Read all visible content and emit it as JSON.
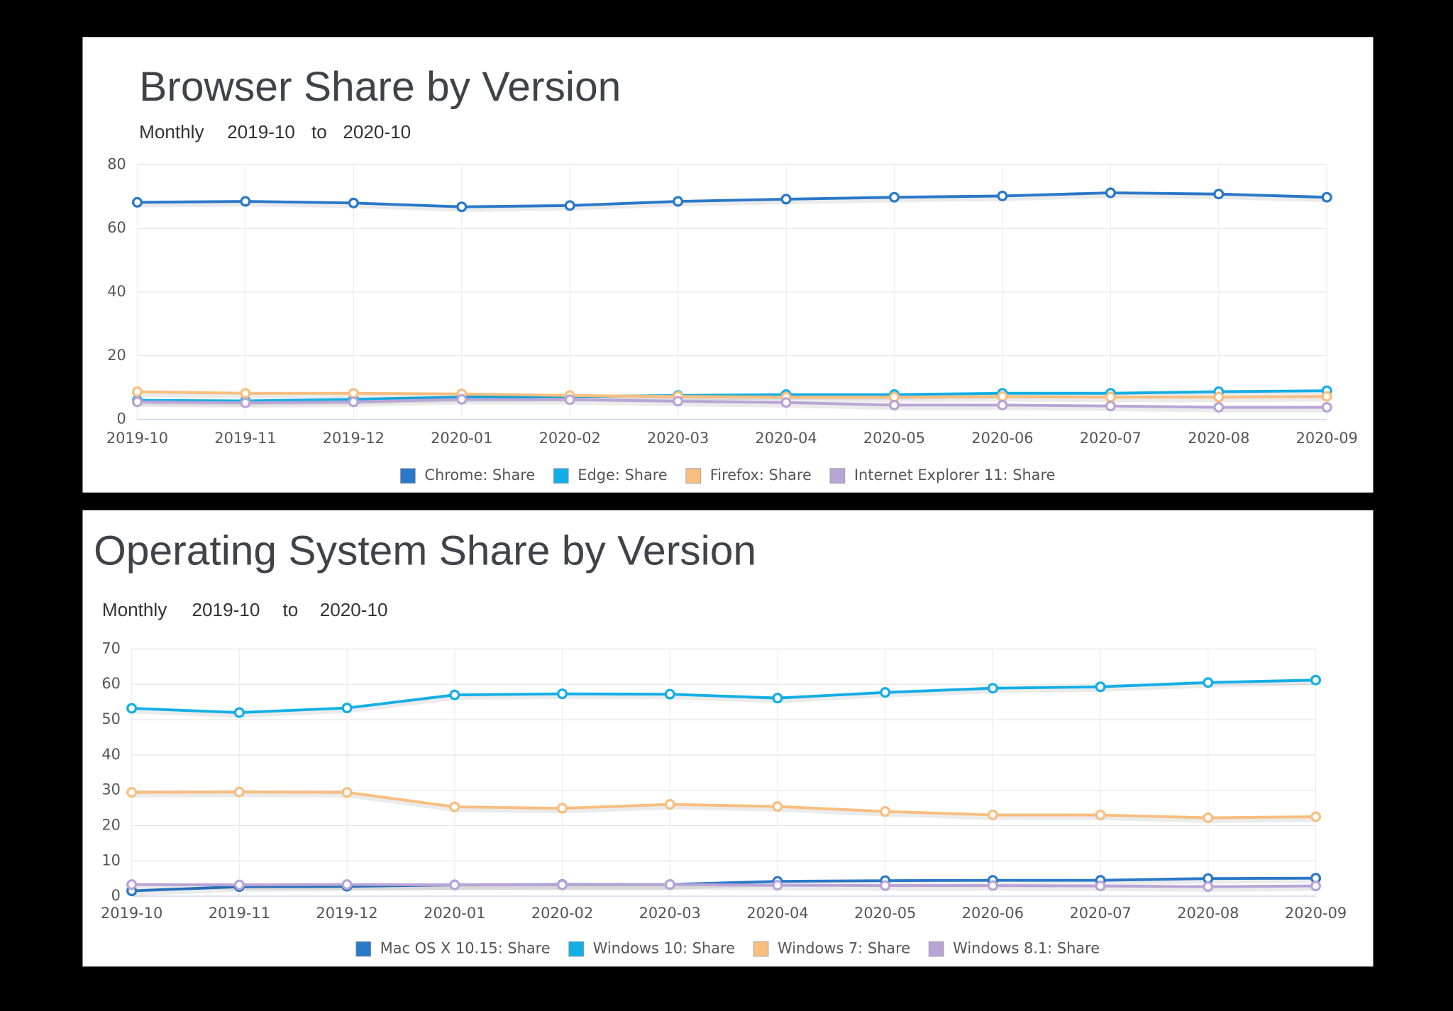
{
  "chart_data": [
    {
      "type": "line",
      "title": "Browser Share by Version",
      "subtitle": [
        "Monthly",
        "2019-10",
        "to",
        "2020-10"
      ],
      "categories": [
        "2019-10",
        "2019-11",
        "2019-12",
        "2020-01",
        "2020-02",
        "2020-03",
        "2020-04",
        "2020-05",
        "2020-06",
        "2020-07",
        "2020-08",
        "2020-09"
      ],
      "ylim": [
        0,
        80
      ],
      "yticks": [
        0,
        20,
        40,
        60,
        80
      ],
      "grid": true,
      "legend": "bottom",
      "series": [
        {
          "name": "Chrome: Share",
          "color": "#2a78c8",
          "values": [
            68.2,
            68.5,
            68,
            66.8,
            67.2,
            68.5,
            69.2,
            69.8,
            70.2,
            71.2,
            70.8,
            69.8
          ]
        },
        {
          "name": "Edge: Share",
          "color": "#14aee6",
          "values": [
            6,
            5.8,
            6.3,
            7,
            7.2,
            7.5,
            7.8,
            7.8,
            8.2,
            8.2,
            8.7,
            9
          ]
        },
        {
          "name": "Firefox: Share",
          "color": "#f8be80",
          "values": [
            8.7,
            8.2,
            8.2,
            8,
            7.5,
            7.2,
            7,
            7,
            7.2,
            7,
            7,
            7.2
          ]
        },
        {
          "name": "Internet Explorer 11: Share",
          "color": "#b9a4d6",
          "values": [
            5.5,
            5.2,
            5.5,
            6.3,
            6.2,
            5.7,
            5.3,
            4.5,
            4.5,
            4.2,
            3.8,
            3.8
          ]
        }
      ]
    },
    {
      "type": "line",
      "title": "Operating System Share by Version",
      "subtitle": [
        "Monthly",
        "2019-10",
        "to",
        "2020-10"
      ],
      "categories": [
        "2019-10",
        "2019-11",
        "2019-12",
        "2020-01",
        "2020-02",
        "2020-03",
        "2020-04",
        "2020-05",
        "2020-06",
        "2020-07",
        "2020-08",
        "2020-09"
      ],
      "ylim": [
        0,
        70
      ],
      "yticks": [
        0,
        10,
        20,
        30,
        40,
        50,
        60,
        70
      ],
      "grid": true,
      "legend": "bottom",
      "series": [
        {
          "name": "Mac OS X 10.15: Share",
          "color": "#2a78c8",
          "values": [
            1.5,
            2.7,
            2.8,
            3.2,
            3.3,
            3.3,
            4.2,
            4.4,
            4.5,
            4.5,
            5,
            5.1
          ]
        },
        {
          "name": "Windows 10: Share",
          "color": "#14aee6",
          "values": [
            53.2,
            52,
            53.3,
            57,
            57.3,
            57.2,
            56.1,
            57.7,
            58.9,
            59.3,
            60.5,
            61.2
          ]
        },
        {
          "name": "Windows 7: Share",
          "color": "#f8be80",
          "values": [
            29.4,
            29.5,
            29.4,
            25.3,
            24.9,
            26,
            25.4,
            24,
            23,
            23,
            22.2,
            22.5
          ]
        },
        {
          "name": "Windows 8.1: Share",
          "color": "#b9a4d6",
          "values": [
            3.3,
            3.2,
            3.3,
            3.2,
            3.2,
            3.3,
            3.1,
            3,
            3,
            2.9,
            2.7,
            2.9
          ]
        }
      ]
    }
  ]
}
